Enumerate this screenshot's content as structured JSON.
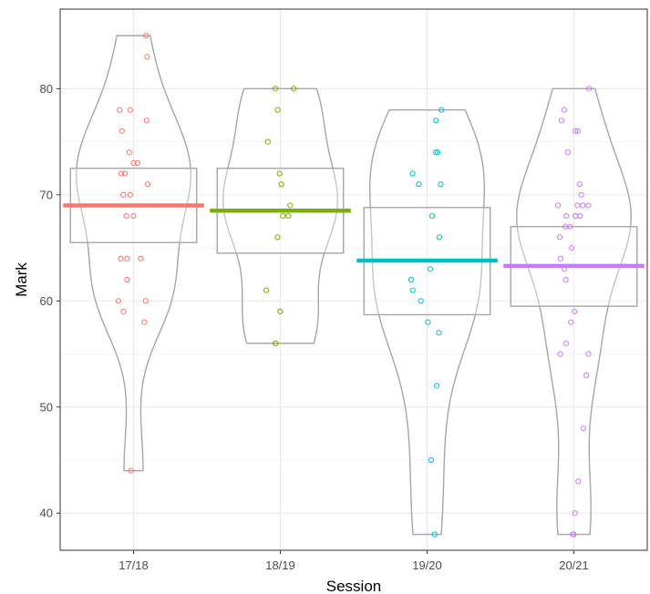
{
  "chart_data": {
    "type": "pirate plot (violin + box + mean line + jittered points)",
    "xlabel": "Session",
    "ylabel": "Mark",
    "ylim": [
      36.5,
      87.5
    ],
    "y_ticks": [
      40,
      50,
      60,
      70,
      80
    ],
    "categories": [
      "17/18",
      "18/19",
      "19/20",
      "20/21"
    ],
    "grid": true,
    "legend": "none",
    "series": [
      {
        "category": "17/18",
        "color": "#F8766D",
        "mean": 69.0,
        "box": [
          65.5,
          72.5
        ],
        "range": [
          44,
          85
        ],
        "points": [
          85,
          83,
          78,
          78,
          77,
          76,
          74,
          73,
          73,
          72,
          72,
          71,
          70,
          70,
          68,
          68,
          64,
          64,
          64,
          62,
          60,
          60,
          59,
          58,
          44
        ]
      },
      {
        "category": "18/19",
        "color": "#7CAE00",
        "mean": 68.5,
        "box": [
          64.5,
          72.5
        ],
        "range": [
          56,
          80
        ],
        "points": [
          80,
          80,
          78,
          75,
          72,
          71,
          69,
          68,
          68,
          66,
          61,
          59,
          56,
          56
        ]
      },
      {
        "category": "19/20",
        "color": "#00BFC4",
        "mean": 63.8,
        "box": [
          58.7,
          68.8
        ],
        "range": [
          38,
          78
        ],
        "points": [
          78,
          77,
          74,
          74,
          72,
          71,
          71,
          68,
          66,
          63,
          62,
          61,
          60,
          58,
          57,
          52,
          45,
          38
        ]
      },
      {
        "category": "20/21",
        "color": "#C77CFF",
        "mean": 63.3,
        "box": [
          59.5,
          67.0
        ],
        "range": [
          38,
          80
        ],
        "points": [
          80,
          78,
          77,
          76,
          76,
          74,
          71,
          70,
          69,
          69,
          69,
          69,
          68,
          68,
          68,
          68,
          67,
          67,
          66,
          65,
          64,
          63,
          62,
          59,
          58,
          56,
          55,
          55,
          53,
          48,
          43,
          40,
          38,
          38
        ]
      }
    ]
  }
}
